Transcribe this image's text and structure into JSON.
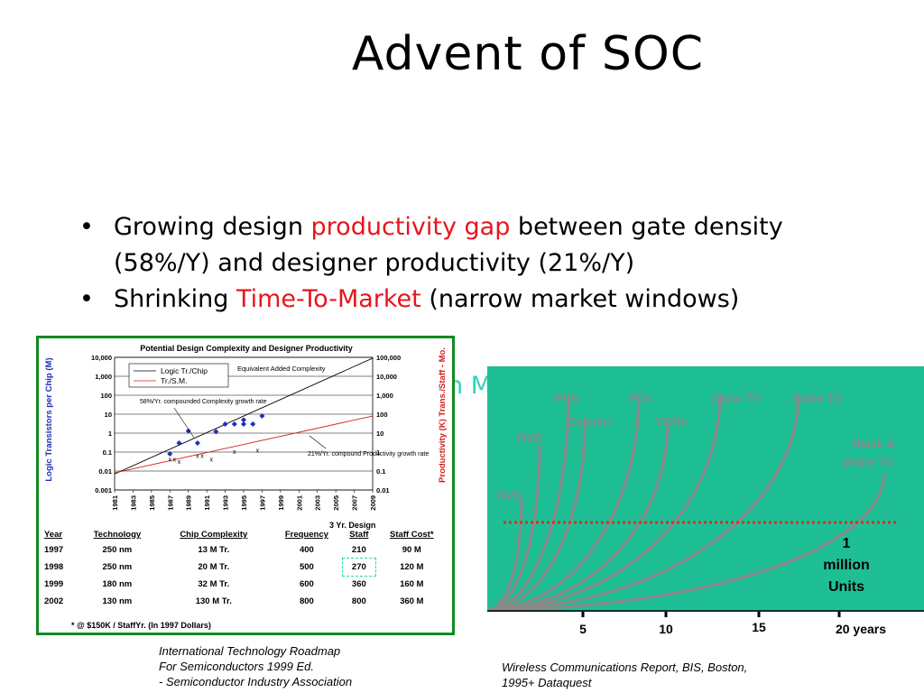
{
  "slide": {
    "title": "Advent of SOC",
    "bullets": [
      {
        "pre": "Growing design ",
        "highlight": "productivity gap",
        "post": " between gate density (58%/Y) and designer productivity (21%/Y)"
      },
      {
        "pre": "Shrinking ",
        "highlight": "Time-To-Market",
        "post": " (narrow market windows)"
      }
    ],
    "ghost_text": "n M"
  },
  "left_figure": {
    "chart_data": {
      "type": "line",
      "title": "Potential Design Complexity and Designer Productivity",
      "ylabel": "Logic Transistors per Chip (M)",
      "y2label": "Productivity (K) Trans./Staff - Mo.",
      "yticks": [
        "10,000",
        "1,000",
        "100",
        "10",
        "1",
        "0.1",
        "0.01",
        "0.001"
      ],
      "y2ticks": [
        "100,000",
        "10,000",
        "1,000",
        "100",
        "10",
        "1",
        "0.1",
        "0.01"
      ],
      "xticks": [
        "1981",
        "1983",
        "1985",
        "1987",
        "1989",
        "1991",
        "1993",
        "1995",
        "1997",
        "1999",
        "2001",
        "2003",
        "2005",
        "2007",
        "2009"
      ],
      "yscale": "log",
      "legend": [
        "Logic Tr./Chip",
        "Tr./S.M."
      ],
      "annotations": [
        "Equivalent Added Complexity",
        "58%/Yr. compounded Complexity growth rate",
        "21%/Yr. compound Productivity growth rate",
        "3 Yr. Design"
      ],
      "series": [
        {
          "name": "Logic Tr./Chip",
          "x": [
            1981,
            2009
          ],
          "y": [
            0.007,
            9000
          ]
        },
        {
          "name": "Tr./S.M.",
          "x": [
            1981,
            2009
          ],
          "y": [
            0.008,
            8
          ]
        }
      ],
      "points_logic": [
        [
          1987,
          0.08
        ],
        [
          1988,
          0.3
        ],
        [
          1989,
          1.3
        ],
        [
          1990,
          0.3
        ],
        [
          1992,
          1.2
        ],
        [
          1993,
          3
        ],
        [
          1994,
          3
        ],
        [
          1995,
          5
        ],
        [
          1995,
          3
        ],
        [
          1996,
          3
        ],
        [
          1997,
          8
        ]
      ],
      "points_staff": [
        [
          1987,
          0.04
        ],
        [
          1987.5,
          0.04
        ],
        [
          1988,
          0.03
        ],
        [
          1990,
          0.06
        ],
        [
          1990.5,
          0.06
        ],
        [
          1991.5,
          0.04
        ],
        [
          1994,
          0.1
        ],
        [
          1996.5,
          0.12
        ]
      ]
    },
    "table": {
      "headers": [
        "Year",
        "Technology",
        "Chip Complexity",
        "Frequency",
        "Staff",
        "Staff Cost*"
      ],
      "rows": [
        [
          "1997",
          "250 nm",
          "13 M Tr.",
          "400",
          "210",
          "90 M"
        ],
        [
          "1998",
          "250 nm",
          "20 M Tr.",
          "500",
          "270",
          "120 M"
        ],
        [
          "1999",
          "180 nm",
          "32 M Tr.",
          "600",
          "360",
          "160 M"
        ],
        [
          "2002",
          "130 nm",
          "130 M Tr.",
          "800",
          "800",
          "360 M"
        ]
      ]
    },
    "footnote": "* @ $150K / StaffYr. (In 1997 Dollars)",
    "reference": [
      "International Technology Roadmap",
      "For Semiconductors 1999 Ed.",
      "- Semiconductor Industry Association"
    ]
  },
  "right_figure": {
    "chart_data": {
      "type": "line",
      "series_labels": [
        "PCS",
        "PCs",
        "Color TV",
        "Cable TV",
        "Cellular",
        "VCRs",
        "DVB",
        "Black & White TV",
        "DVD"
      ],
      "threshold_label": "1 million Units",
      "xticks": [
        "5",
        "10",
        "15",
        "20 years"
      ],
      "colors": {
        "background": "#1fbf96",
        "curve": "#8a8a8a",
        "threshold": "#c0392b"
      }
    },
    "reference": [
      "Wireless Communications Report, BIS, Boston,",
      "1995+ Dataquest"
    ]
  }
}
